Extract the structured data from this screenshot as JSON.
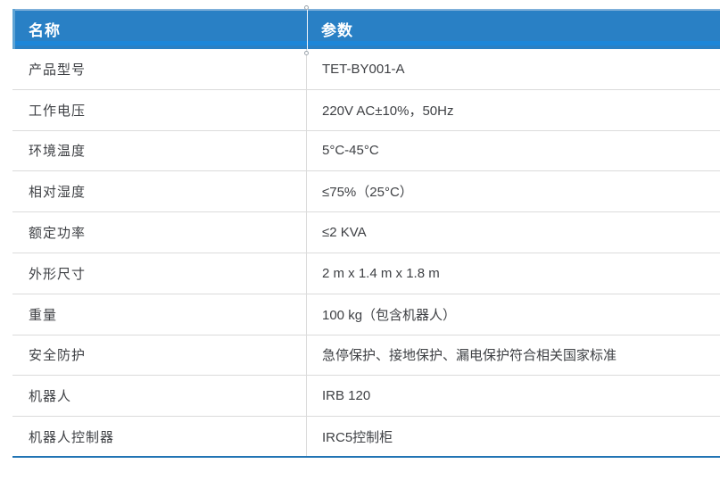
{
  "colors": {
    "header_bg": "#2980C5",
    "header_text": "#FFFFFF",
    "body_text": "#3E4044",
    "row_divider": "#DBDBDB",
    "bottom_border": "#2174B4"
  },
  "table": {
    "columns": [
      {
        "label": "名称"
      },
      {
        "label": "参数"
      }
    ],
    "rows": [
      {
        "name": "产品型号",
        "value": "TET-BY001-A"
      },
      {
        "name": "工作电压",
        "value": "220V AC±10%，50Hz"
      },
      {
        "name": "环境温度",
        "value": "5°C-45°C"
      },
      {
        "name": "相对湿度",
        "value": "≤75%（25°C）"
      },
      {
        "name": "额定功率",
        "value": "≤2 KVA"
      },
      {
        "name": "外形尺寸",
        "value": "2 m x 1.4 m x 1.8 m"
      },
      {
        "name": "重量",
        "value": "100 kg（包含机器人）"
      },
      {
        "name": "安全防护",
        "value": "急停保护、接地保护、漏电保护符合相关国家标准"
      },
      {
        "name": "机器人",
        "value": "IRB 120"
      },
      {
        "name": "机器人控制器",
        "value": "IRC5控制柜"
      }
    ]
  }
}
